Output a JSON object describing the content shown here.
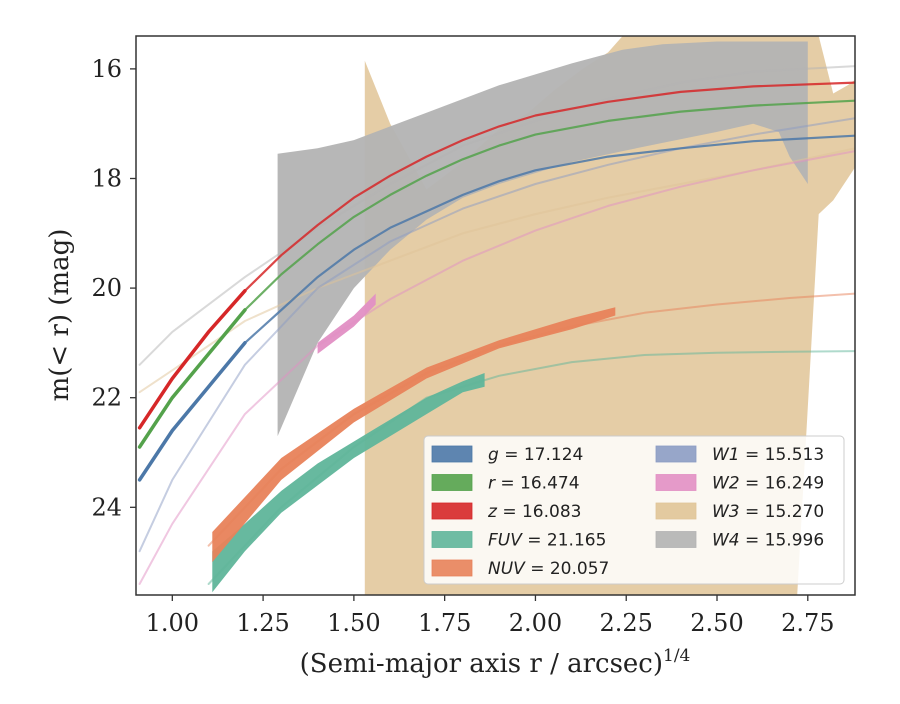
{
  "chart_data": {
    "type": "line",
    "title": "",
    "xlabel": "(Semi-major axis r / arcsec)",
    "xlabel_superscript": "1/4",
    "ylabel": "m(< r) (mag)",
    "xlim": [
      0.9,
      2.88
    ],
    "ylim": [
      25.6,
      15.4
    ],
    "y_inverted": true,
    "grid": false,
    "legend": "lower-right",
    "x_ticks": [
      1.0,
      1.25,
      1.5,
      1.75,
      2.0,
      2.25,
      2.5,
      2.75
    ],
    "x_tick_labels": [
      "1.00",
      "1.25",
      "1.50",
      "1.75",
      "2.00",
      "2.25",
      "2.50",
      "2.75"
    ],
    "y_ticks": [
      16,
      18,
      20,
      22,
      24
    ],
    "y_tick_labels": [
      "16",
      "18",
      "20",
      "22",
      "24"
    ],
    "series": [
      {
        "name": "g",
        "value_label": "17.124",
        "color": "#4c78a8",
        "model_x": [
          0.91,
          1.0,
          1.1,
          1.2,
          1.3,
          1.4,
          1.5,
          1.6,
          1.7,
          1.8,
          1.9,
          2.0,
          2.2,
          2.4,
          2.6,
          2.88
        ],
        "model_y": [
          23.5,
          22.6,
          21.8,
          21.0,
          20.4,
          19.8,
          19.3,
          18.9,
          18.6,
          18.3,
          18.05,
          17.85,
          17.6,
          17.45,
          17.32,
          17.22
        ],
        "band_x": [
          0.91,
          1.1,
          1.29
        ],
        "band_lo": [
          23.4,
          21.8,
          20.3
        ],
        "band_hi": [
          23.4,
          21.8,
          20.3
        ]
      },
      {
        "name": "r",
        "value_label": "16.474",
        "color": "#54a24b",
        "model_x": [
          0.91,
          1.0,
          1.1,
          1.2,
          1.3,
          1.4,
          1.5,
          1.6,
          1.7,
          1.8,
          1.9,
          2.0,
          2.2,
          2.4,
          2.6,
          2.88
        ],
        "model_y": [
          22.9,
          22.0,
          21.2,
          20.4,
          19.75,
          19.2,
          18.7,
          18.3,
          17.95,
          17.65,
          17.4,
          17.2,
          16.95,
          16.78,
          16.67,
          16.58
        ],
        "band_x": [
          0.91,
          1.1,
          1.29
        ],
        "band_lo": [
          22.9,
          21.2,
          19.75
        ],
        "band_hi": [
          22.9,
          21.2,
          19.75
        ]
      },
      {
        "name": "z",
        "value_label": "16.083",
        "color": "#d62728",
        "model_x": [
          0.91,
          1.0,
          1.1,
          1.2,
          1.3,
          1.4,
          1.5,
          1.6,
          1.7,
          1.8,
          1.9,
          2.0,
          2.2,
          2.4,
          2.6,
          2.88
        ],
        "model_y": [
          22.55,
          21.65,
          20.8,
          20.05,
          19.4,
          18.85,
          18.35,
          17.95,
          17.6,
          17.3,
          17.05,
          16.85,
          16.6,
          16.42,
          16.32,
          16.25
        ],
        "band_x": [
          0.91,
          1.1,
          1.29
        ],
        "band_lo": [
          22.55,
          20.8,
          19.45
        ],
        "band_hi": [
          22.55,
          20.8,
          19.45
        ]
      },
      {
        "name": "FUV",
        "value_label": "21.165",
        "color": "#5fb59a",
        "model_x": [
          1.1,
          1.3,
          1.5,
          1.7,
          1.9,
          2.1,
          2.3,
          2.5,
          2.7,
          2.88
        ],
        "model_y": [
          25.4,
          24.0,
          22.9,
          22.0,
          21.6,
          21.35,
          21.22,
          21.18,
          21.16,
          21.15
        ],
        "band_x": [
          1.11,
          1.2,
          1.3,
          1.4,
          1.5,
          1.6,
          1.7,
          1.8,
          1.86
        ],
        "band_lo": [
          24.8,
          24.3,
          23.7,
          23.2,
          22.8,
          22.4,
          22.0,
          21.7,
          21.55
        ],
        "band_hi": [
          25.55,
          24.8,
          24.1,
          23.6,
          23.1,
          22.7,
          22.3,
          21.9,
          21.8
        ]
      },
      {
        "name": "NUV",
        "value_label": "20.057",
        "color": "#e8825a",
        "model_x": [
          1.1,
          1.3,
          1.5,
          1.7,
          1.9,
          2.1,
          2.3,
          2.5,
          2.7,
          2.88
        ],
        "model_y": [
          24.7,
          23.3,
          22.3,
          21.55,
          21.05,
          20.7,
          20.45,
          20.3,
          20.18,
          20.1
        ],
        "band_x": [
          1.11,
          1.3,
          1.5,
          1.7,
          1.9,
          2.1,
          2.22
        ],
        "band_lo": [
          24.45,
          23.1,
          22.2,
          21.45,
          20.95,
          20.55,
          20.35
        ],
        "band_hi": [
          25.0,
          23.5,
          22.45,
          21.65,
          21.1,
          20.75,
          20.5
        ]
      },
      {
        "name": "W1",
        "value_label": "15.513",
        "color": "#8c9cc4",
        "model_x": [
          0.91,
          1.0,
          1.2,
          1.4,
          1.6,
          1.8,
          2.0,
          2.2,
          2.4,
          2.6,
          2.88
        ],
        "model_y": [
          24.8,
          23.5,
          21.4,
          20.0,
          19.15,
          18.55,
          18.1,
          17.75,
          17.45,
          17.2,
          16.9
        ],
        "band_x": [],
        "band_lo": [],
        "band_hi": []
      },
      {
        "name": "W2",
        "value_label": "16.249",
        "color": "#e28fc4",
        "model_x": [
          0.91,
          1.0,
          1.2,
          1.4,
          1.6,
          1.8,
          2.0,
          2.2,
          2.4,
          2.6,
          2.88
        ],
        "model_y": [
          25.4,
          24.3,
          22.3,
          21.05,
          20.2,
          19.5,
          18.95,
          18.5,
          18.15,
          17.85,
          17.5
        ],
        "band_x": [
          1.4,
          1.5,
          1.56
        ],
        "band_lo": [
          21.0,
          20.5,
          20.1
        ],
        "band_hi": [
          21.2,
          20.7,
          20.3
        ]
      },
      {
        "name": "W3",
        "value_label": "15.270",
        "color": "#e0c497",
        "model_x": [
          0.91,
          1.0,
          1.2,
          1.4,
          1.6,
          1.8,
          2.0,
          2.2,
          2.4,
          2.6,
          2.88
        ],
        "model_y": [
          21.9,
          21.5,
          20.6,
          20.0,
          19.5,
          19.0,
          18.65,
          18.35,
          18.1,
          17.85,
          17.45
        ],
        "band_x": [
          1.53,
          1.6,
          1.7,
          1.8,
          1.9,
          1.98,
          2.05,
          2.13,
          2.2,
          2.24,
          2.3,
          2.4,
          2.5,
          2.6,
          2.66,
          2.72,
          2.78,
          2.82,
          2.86,
          2.88
        ],
        "band_lo": [
          25.7,
          25.7,
          25.7,
          25.7,
          25.7,
          25.7,
          25.7,
          25.7,
          25.7,
          25.7,
          25.7,
          25.7,
          25.7,
          25.7,
          25.7,
          25.7,
          18.65,
          18.4,
          18.0,
          17.8
        ],
        "band_hi": [
          15.85,
          17.0,
          18.2,
          17.7,
          17.1,
          16.8,
          16.4,
          16.0,
          15.7,
          15.4,
          15.4,
          15.4,
          15.4,
          15.4,
          15.4,
          15.4,
          15.4,
          16.45,
          16.3,
          16.2
        ]
      },
      {
        "name": "W4",
        "value_label": "15.996",
        "color": "#b3b3b3",
        "model_x": [
          0.91,
          1.0,
          1.2,
          1.4,
          1.6,
          1.8,
          2.0,
          2.2,
          2.4,
          2.6,
          2.88
        ],
        "model_y": [
          21.4,
          20.8,
          19.8,
          18.9,
          18.1,
          17.4,
          16.95,
          16.55,
          16.25,
          16.05,
          15.95
        ],
        "band_x": [
          1.29,
          1.4,
          1.5,
          1.6,
          1.7,
          1.8,
          1.9,
          2.0,
          2.1,
          2.24,
          2.35,
          2.5,
          2.6,
          2.67,
          2.7,
          2.75
        ],
        "band_lo": [
          22.7,
          21.0,
          20.0,
          19.3,
          18.75,
          18.35,
          18.1,
          17.9,
          17.7,
          17.5,
          17.35,
          17.15,
          17.0,
          17.15,
          17.6,
          18.1
        ],
        "band_hi": [
          17.55,
          17.45,
          17.3,
          17.05,
          16.8,
          16.55,
          16.3,
          16.1,
          15.9,
          15.65,
          15.55,
          15.5,
          15.5,
          15.5,
          15.5,
          15.5
        ]
      }
    ]
  }
}
